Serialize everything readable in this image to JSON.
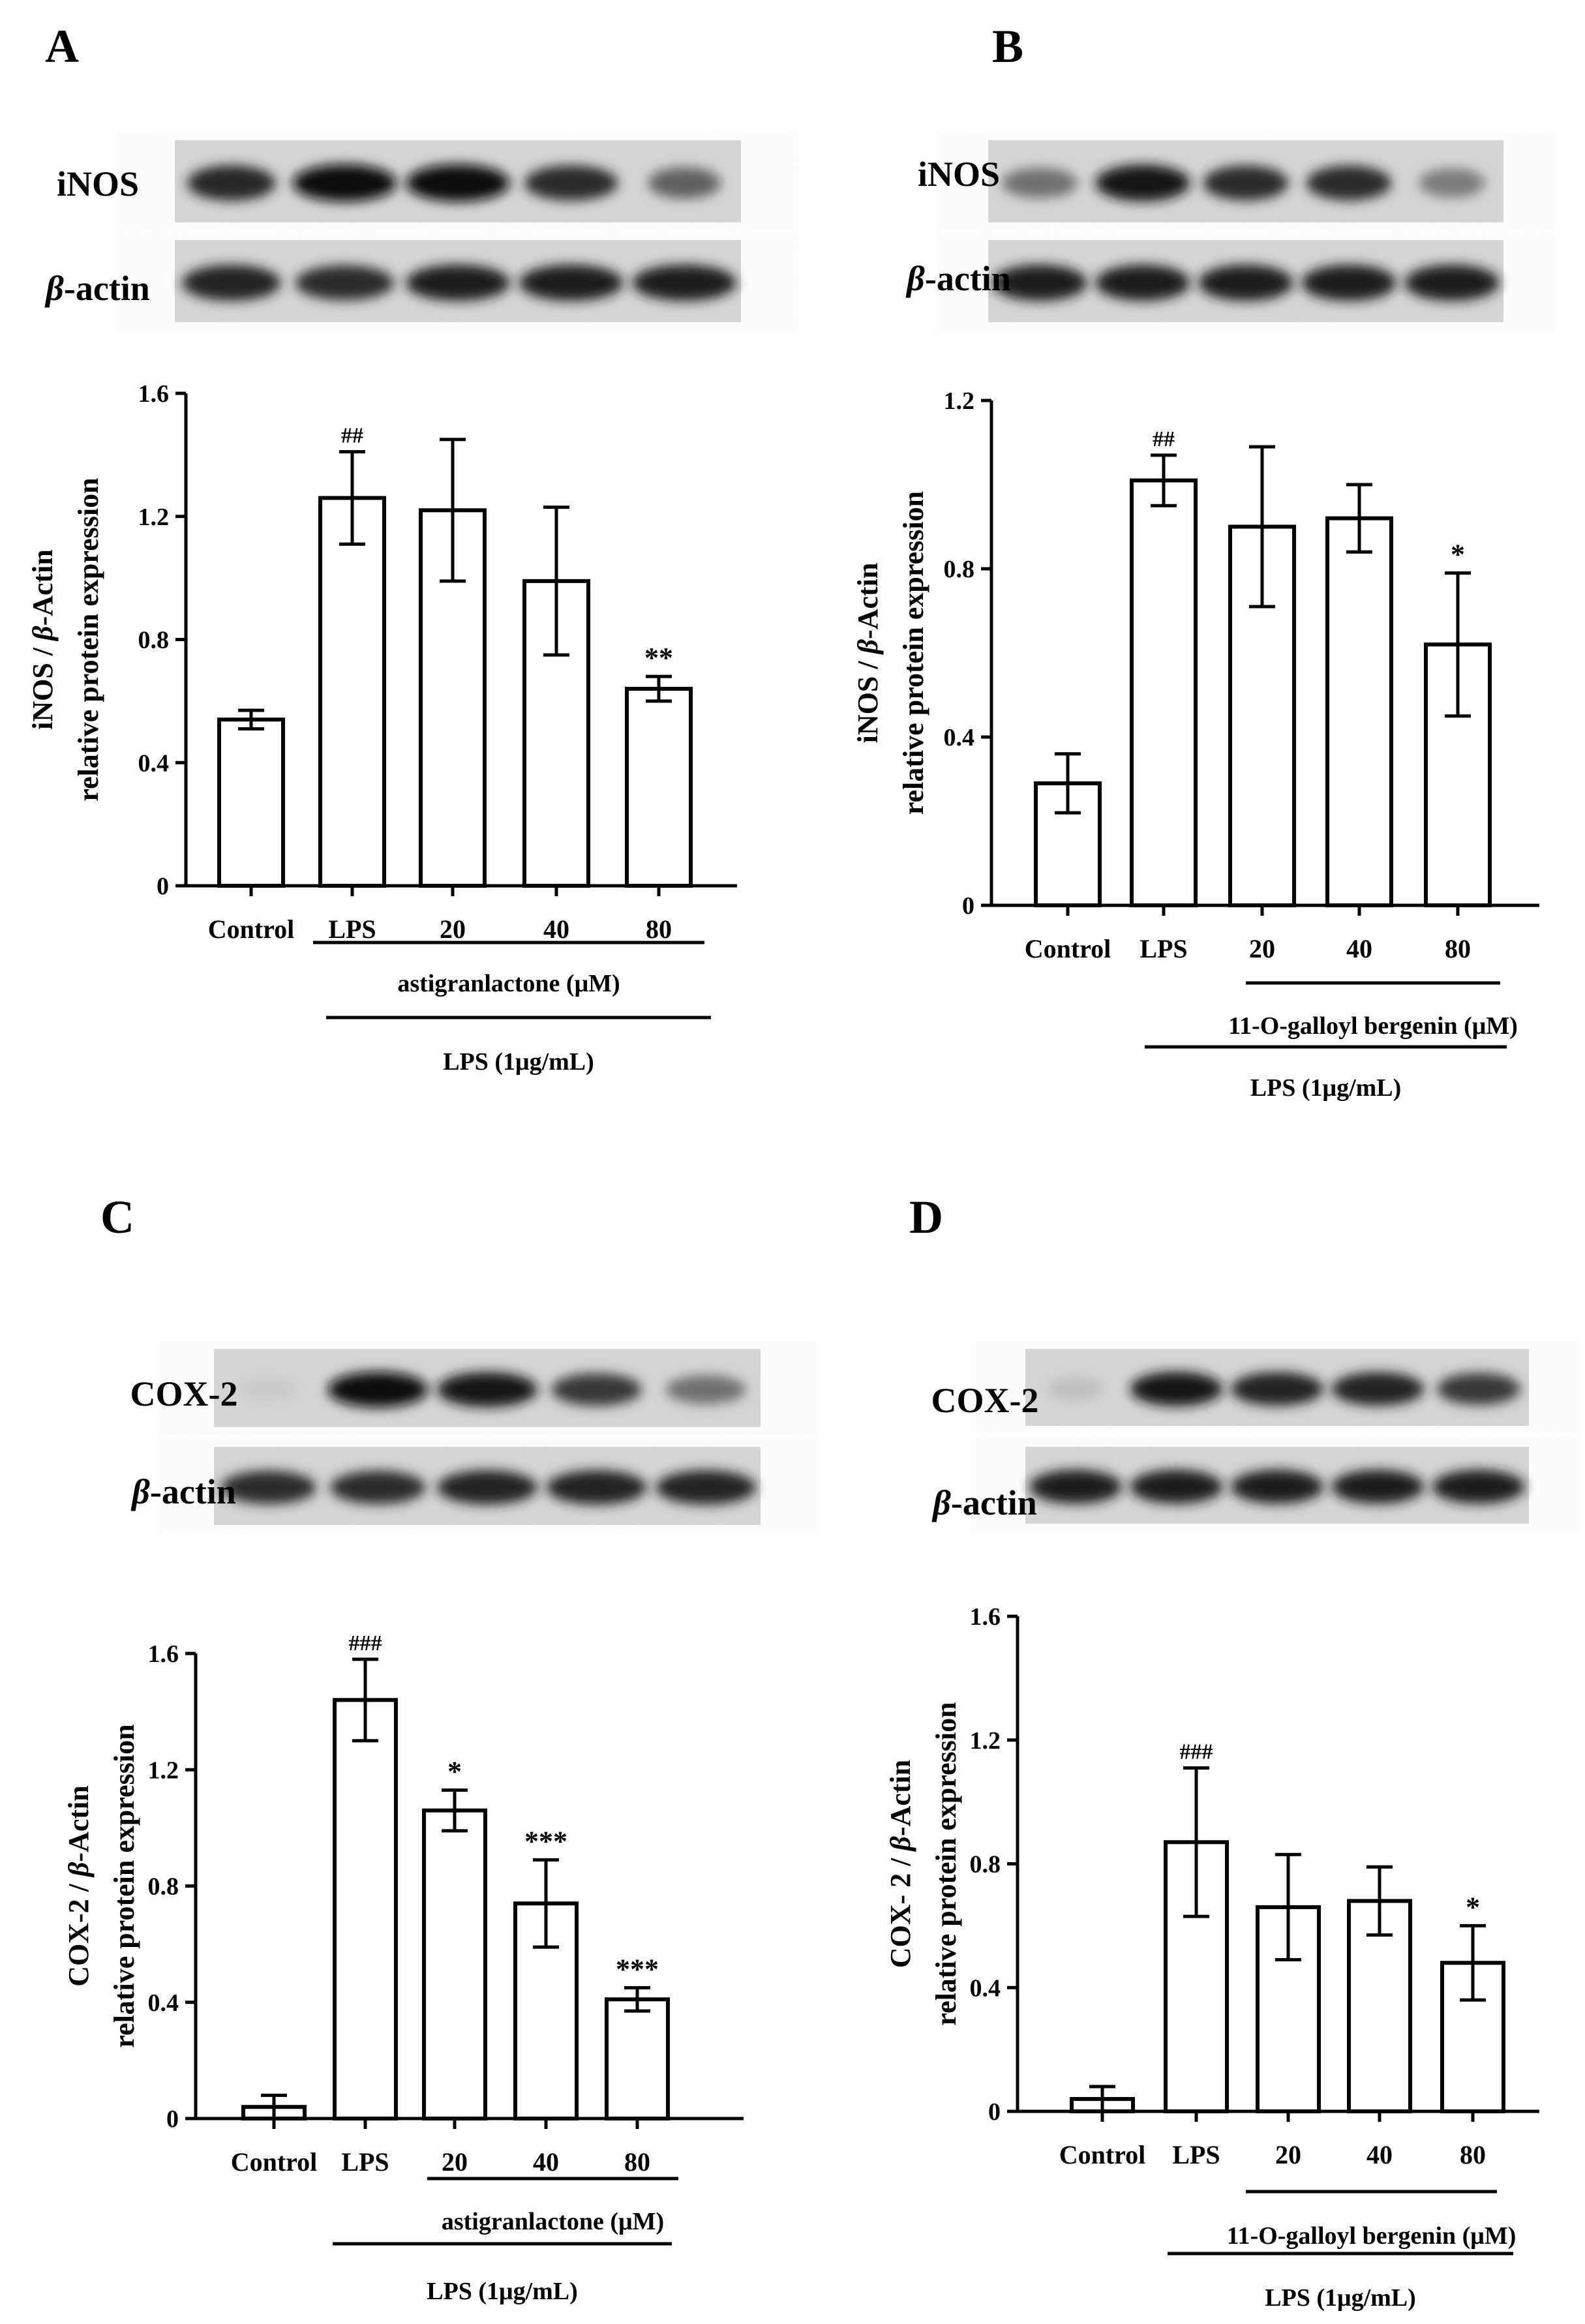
{
  "panels": [
    {
      "letter": "A",
      "blots": [
        {
          "label": "iNOS",
          "italic_prefix": "",
          "rest": "iNOS",
          "band_intensity": [
            0.88,
            1.0,
            1.0,
            0.86,
            0.62
          ],
          "band_width": [
            0.85,
            1.0,
            1.0,
            0.9,
            0.7
          ]
        },
        {
          "label": "β-actin",
          "italic_prefix": "β",
          "rest": "-actin",
          "band_intensity": [
            0.9,
            0.85,
            0.92,
            0.92,
            0.92
          ],
          "band_width": [
            0.95,
            0.95,
            1.0,
            1.0,
            1.0
          ]
        }
      ],
      "chart_data": {
        "type": "bar",
        "categories": [
          "Control",
          "LPS",
          "20",
          "40",
          "80"
        ],
        "values": [
          0.54,
          1.26,
          1.22,
          0.99,
          0.64
        ],
        "errors": [
          0.03,
          0.15,
          0.23,
          0.24,
          0.04
        ],
        "significance": [
          "",
          "##",
          "",
          "",
          "**"
        ],
        "ylabel_line1_pre": "iNOS / ",
        "ylabel_line1_italic": "β",
        "ylabel_line1_post": "-Actin",
        "ylabel_line2": "relative protein expression",
        "ylim": [
          0,
          1.6
        ],
        "yticks": [
          "0",
          "0.4",
          "0.8",
          "1.2",
          "1.6"
        ],
        "group_label_1": "astigranlactone (μM)",
        "group_label_2": "LPS (1μg/mL)"
      }
    },
    {
      "letter": "B",
      "blots": [
        {
          "label": "iNOS",
          "italic_prefix": "",
          "rest": "iNOS",
          "band_intensity": [
            0.55,
            0.95,
            0.85,
            0.85,
            0.5
          ],
          "band_width": [
            0.8,
            1.0,
            0.9,
            0.9,
            0.7
          ]
        },
        {
          "label": "β-actin",
          "italic_prefix": "β",
          "rest": "-actin",
          "band_intensity": [
            0.92,
            0.92,
            0.92,
            0.92,
            0.92
          ],
          "band_width": [
            1.0,
            1.0,
            1.0,
            1.0,
            1.0
          ]
        }
      ],
      "chart_data": {
        "type": "bar",
        "categories": [
          "Control",
          "LPS",
          "20",
          "40",
          "80"
        ],
        "values": [
          0.29,
          1.01,
          0.9,
          0.92,
          0.62
        ],
        "errors": [
          0.07,
          0.06,
          0.19,
          0.08,
          0.17
        ],
        "significance": [
          "",
          "##",
          "",
          "",
          "*"
        ],
        "ylabel_line1_pre": "iNOS / ",
        "ylabel_line1_italic": "β",
        "ylabel_line1_post": "-Actin",
        "ylabel_line2": "relative protein expression",
        "ylim": [
          0,
          1.2
        ],
        "yticks": [
          "0",
          "0.4",
          "0.8",
          "1.2"
        ],
        "group_label_1": "11-O-galloyl bergenin (μM)",
        "group_label_2": "LPS (1μg/mL)"
      }
    },
    {
      "letter": "C",
      "blots": [
        {
          "label": "COX-2",
          "italic_prefix": "",
          "rest": "COX-2",
          "band_intensity": [
            0.15,
            1.0,
            0.95,
            0.8,
            0.55
          ],
          "band_width": [
            0.6,
            1.0,
            1.0,
            0.9,
            0.8
          ]
        },
        {
          "label": "β-actin",
          "italic_prefix": "β",
          "rest": "-actin",
          "band_intensity": [
            0.85,
            0.85,
            0.9,
            0.9,
            0.9
          ],
          "band_width": [
            0.95,
            0.95,
            1.0,
            1.0,
            1.0
          ]
        }
      ],
      "chart_data": {
        "type": "bar",
        "categories": [
          "Control",
          "LPS",
          "20",
          "40",
          "80"
        ],
        "values": [
          0.04,
          1.44,
          1.06,
          0.74,
          0.41
        ],
        "errors": [
          0.04,
          0.14,
          0.07,
          0.15,
          0.04
        ],
        "significance": [
          "",
          "###",
          "*",
          "***",
          "***"
        ],
        "ylabel_line1_pre": "COX-2 / ",
        "ylabel_line1_italic": "β",
        "ylabel_line1_post": "-Actin",
        "ylabel_line2": "relative protein  expression",
        "ylim": [
          0,
          1.6
        ],
        "yticks": [
          "0",
          "0.4",
          "0.8",
          "1.2",
          "1.6"
        ],
        "group_label_1": "astigranlactone (μM)",
        "group_label_2": "LPS (1μg/mL)"
      }
    },
    {
      "letter": "D",
      "blots": [
        {
          "label": "COX-2",
          "italic_prefix": "",
          "rest": "COX-2",
          "band_intensity": [
            0.2,
            0.95,
            0.9,
            0.9,
            0.8
          ],
          "band_width": [
            0.6,
            1.0,
            1.0,
            1.0,
            0.9
          ]
        },
        {
          "label": "β-actin",
          "italic_prefix": "β",
          "rest": "-actin",
          "band_intensity": [
            0.92,
            0.92,
            0.92,
            0.92,
            0.92
          ],
          "band_width": [
            1.0,
            1.0,
            1.0,
            1.0,
            1.0
          ]
        }
      ],
      "chart_data": {
        "type": "bar",
        "categories": [
          "Control",
          "LPS",
          "20",
          "40",
          "80"
        ],
        "values": [
          0.04,
          0.87,
          0.66,
          0.68,
          0.48
        ],
        "errors": [
          0.04,
          0.24,
          0.17,
          0.11,
          0.12
        ],
        "significance": [
          "",
          "###",
          "",
          "",
          "*"
        ],
        "ylabel_line1_pre": "COX- 2 / ",
        "ylabel_line1_italic": "β",
        "ylabel_line1_post": "-Actin",
        "ylabel_line2": "relative protein expression",
        "ylim": [
          0,
          1.6
        ],
        "yticks": [
          "0",
          "0.4",
          "0.8",
          "1.2",
          "1.6"
        ],
        "group_label_1": "11-O-galloyl bergenin (μM)",
        "group_label_2": "LPS (1μg/mL)"
      }
    }
  ]
}
